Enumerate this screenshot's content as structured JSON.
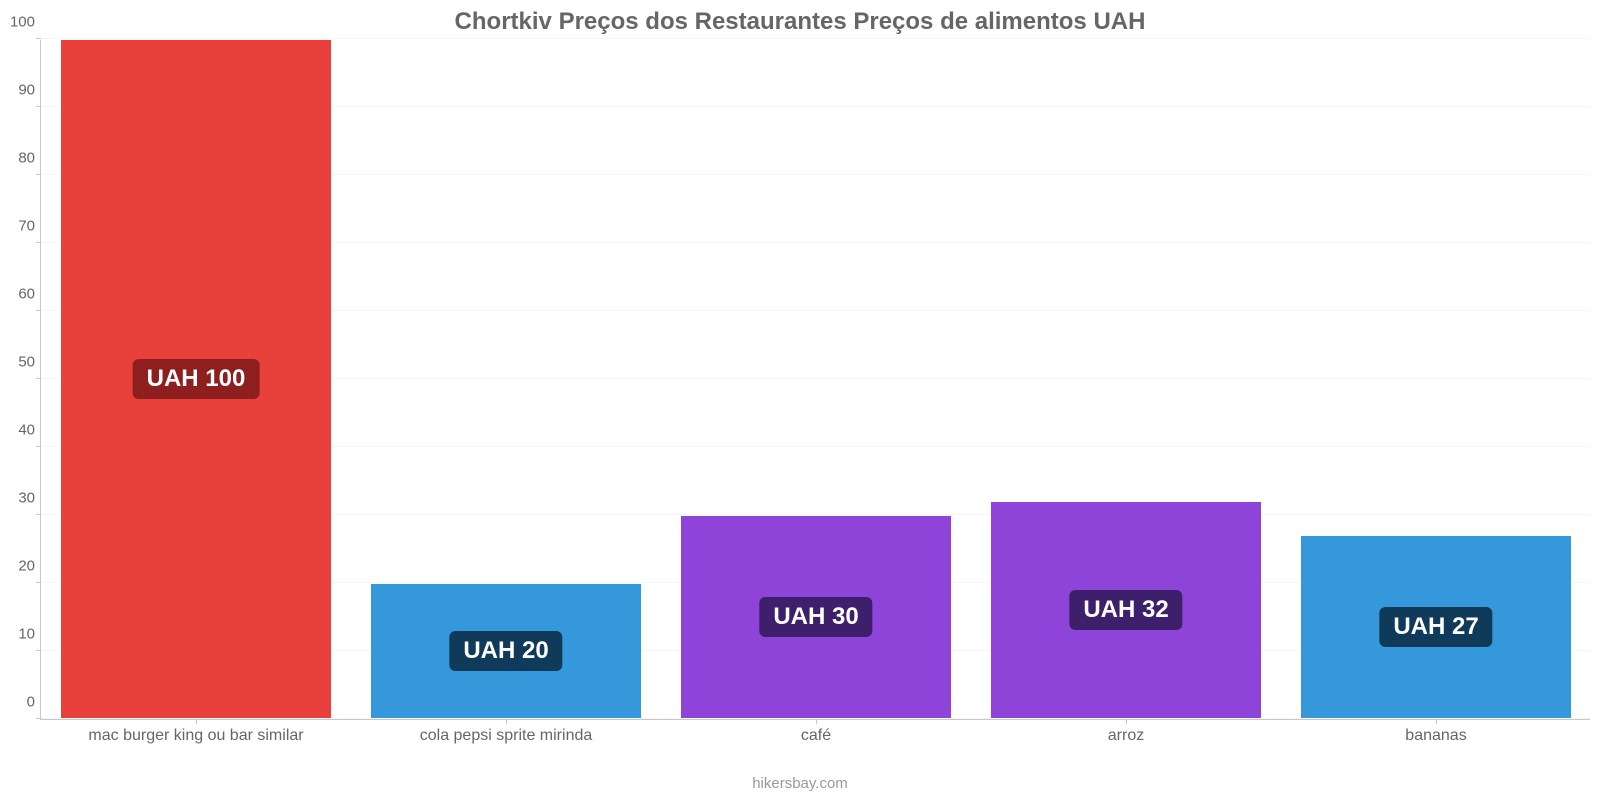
{
  "chart": {
    "type": "bar",
    "title": "Chortkiv Preços dos Restaurantes Preços de alimentos UAH",
    "title_color": "#666666",
    "title_fontsize": 24,
    "footer": "hikersbay.com",
    "footer_color": "#999999",
    "background_color": "#ffffff",
    "grid_color": "#f5f5f5",
    "axis_color": "#c8c8c8",
    "tick_label_color": "#666666",
    "ylim": [
      0,
      100
    ],
    "ytick_step": 10,
    "yticks": [
      0,
      10,
      20,
      30,
      40,
      50,
      60,
      70,
      80,
      90,
      100
    ],
    "value_label_fontsize": 24,
    "axis_label_fontsize": 16,
    "bar_width": 0.88,
    "categories": [
      "mac burger king ou bar similar",
      "cola pepsi sprite mirinda",
      "café",
      "arroz",
      "bananas"
    ],
    "values": [
      100,
      20,
      30,
      32,
      27
    ],
    "value_labels": [
      "UAH 100",
      "UAH 20",
      "UAH 30",
      "UAH 32",
      "UAH 27"
    ],
    "bar_colors": [
      "#e8403a",
      "#3498db",
      "#8e44d9",
      "#8e44d9",
      "#3498db"
    ],
    "badge_colors": [
      "#8e1f1f",
      "#0f3a5a",
      "#3e1f6b",
      "#3e1f6b",
      "#0f3a5a"
    ],
    "badge_text_color": "#ffffff"
  }
}
